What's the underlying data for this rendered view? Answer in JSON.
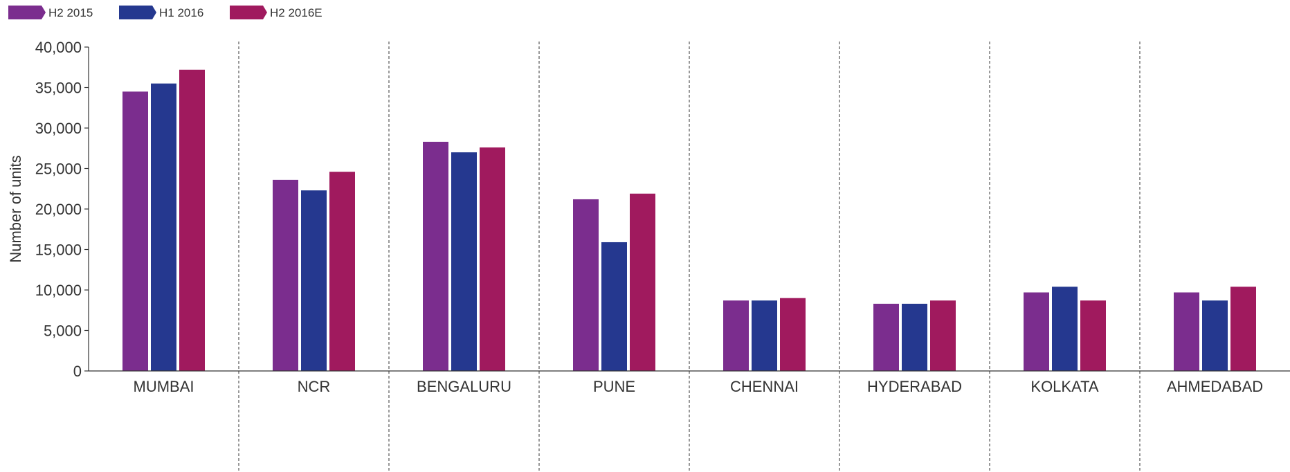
{
  "chart_data": {
    "type": "bar",
    "title": "",
    "xlabel": "",
    "ylabel": "Number of units",
    "ylim": [
      0,
      40000
    ],
    "yticks": [
      0,
      5000,
      10000,
      15000,
      20000,
      25000,
      30000,
      35000,
      40000
    ],
    "ytick_labels": [
      "0",
      "5,000",
      "10,000",
      "15,000",
      "20,000",
      "25,000",
      "30,000",
      "35,000",
      "40,000"
    ],
    "categories": [
      "MUMBAI",
      "NCR",
      "BENGALURU",
      "PUNE",
      "CHENNAI",
      "HYDERABAD",
      "KOLKATA",
      "AHMEDABAD"
    ],
    "series": [
      {
        "name": "H2 2015",
        "color": "#7b2d8e",
        "values": [
          34500,
          23600,
          28300,
          21200,
          8700,
          8300,
          9700,
          9700
        ]
      },
      {
        "name": "H1 2016",
        "color": "#25388f",
        "values": [
          35500,
          22300,
          27000,
          15900,
          8700,
          8300,
          10400,
          8700
        ]
      },
      {
        "name": "H2 2016E",
        "color": "#a01a5e",
        "values": [
          37200,
          24600,
          27600,
          21900,
          9000,
          8700,
          8700,
          10400
        ]
      }
    ],
    "grid": false,
    "separators": "dashed vertical between categories",
    "legend_position": "top-left"
  }
}
